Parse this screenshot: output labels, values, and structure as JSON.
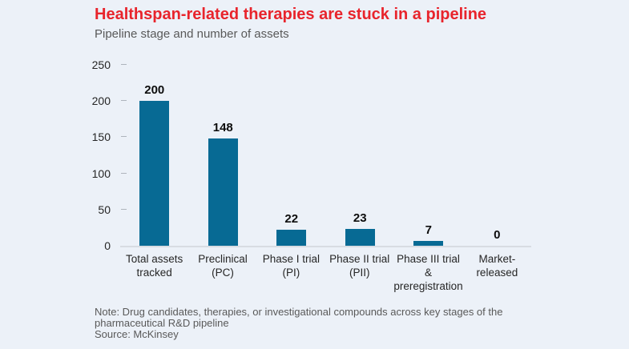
{
  "header": {
    "title": "Healthspan-related therapies are stuck in a pipeline",
    "subtitle": "Pipeline stage and number of assets"
  },
  "chart_data": {
    "type": "bar",
    "title": "Healthspan-related therapies are stuck in a pipeline",
    "subtitle": "Pipeline stage and number of assets",
    "categories": [
      "Total assets\ntracked",
      "Preclinical\n(PC)",
      "Phase I trial\n(PI)",
      "Phase II trial\n(PII)",
      "Phase III trial &\npreregistration",
      "Market-\nreleased"
    ],
    "values": [
      200,
      148,
      22,
      23,
      7,
      0
    ],
    "xlabel": "",
    "ylabel": "",
    "ylim": [
      0,
      250
    ],
    "yticks": [
      0,
      50,
      100,
      150,
      200,
      250
    ],
    "grid": false,
    "legend": false,
    "bar_color": "#076a94"
  },
  "footer": {
    "note": "Note: Drug candidates, therapies, or investigational compounds across key stages of the\npharmaceutical R&D pipeline",
    "source": "Source: McKinsey"
  },
  "colors": {
    "background": "#ecf1f8",
    "title_red": "#e8242c",
    "bar": "#076a94",
    "muted_text": "#595959",
    "axis_line": "#d8dce2"
  }
}
